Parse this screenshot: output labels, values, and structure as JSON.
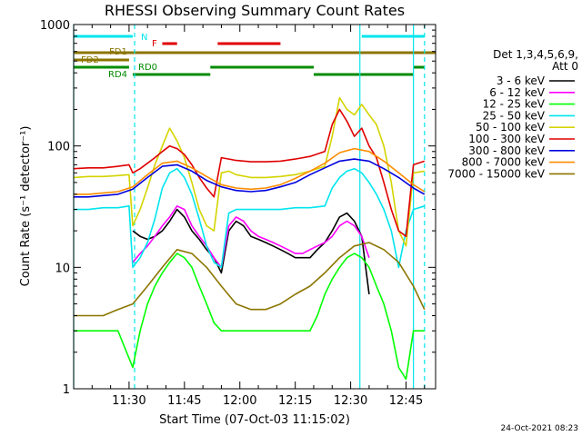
{
  "chart_data": {
    "type": "line",
    "title": "RHESSI Observing Summary Count Rates",
    "xlabel": "Start Time (07-Oct-03 11:15:02)",
    "ylabel": "Count Rate (s⁻¹ detector⁻¹)",
    "x_unit": "minutes after 11:15:02",
    "xlim": [
      0,
      98
    ],
    "ylim": [
      1,
      1000
    ],
    "yscale": "log",
    "x_ticks": [
      {
        "x": 15,
        "label": "11:30"
      },
      {
        "x": 30,
        "label": "11:45"
      },
      {
        "x": 45,
        "label": "12:00"
      },
      {
        "x": 60,
        "label": "12:15"
      },
      {
        "x": 75,
        "label": "12:30"
      },
      {
        "x": 90,
        "label": "12:45"
      }
    ],
    "y_ticks": [
      {
        "y": 1,
        "label": "1"
      },
      {
        "y": 10,
        "label": "10"
      },
      {
        "y": 100,
        "label": "100"
      },
      {
        "y": 1000,
        "label": "1000"
      }
    ],
    "legend_header": [
      "Det 1,3,4,5,6,9,",
      "Att 0"
    ],
    "legend_position": "right",
    "timestamp": "24-Oct-2021 08:23",
    "vlines": [
      {
        "x": 0,
        "style": "solid",
        "color": "#00e5ee"
      },
      {
        "x": 16.5,
        "style": "dashed",
        "color": "#00e5ee"
      },
      {
        "x": 77.5,
        "style": "solid",
        "color": "#00e5ee"
      },
      {
        "x": 92,
        "style": "solid",
        "color": "#00e5ee"
      },
      {
        "x": 95,
        "style": "dashed",
        "color": "#00e5ee"
      }
    ],
    "flags": [
      {
        "label": "N",
        "color": "#00e5ee",
        "level": 40,
        "segments": [
          [
            0,
            16
          ],
          [
            78,
            95
          ]
        ]
      },
      {
        "label": "F",
        "color": "#e00000",
        "level": 48,
        "segments": [
          [
            24,
            28
          ],
          [
            39,
            56
          ]
        ]
      },
      {
        "label": "FD1",
        "color": "#8b7500",
        "level": 58,
        "segments": [
          [
            0,
            98
          ]
        ]
      },
      {
        "label": "FD2",
        "color": "#8b7500",
        "level": 66,
        "segments": [
          [
            0,
            15
          ]
        ]
      },
      {
        "label": "RD0",
        "color": "#008b00",
        "level": 74,
        "segments": [
          [
            0,
            15
          ],
          [
            37,
            65
          ],
          [
            92,
            95
          ]
        ]
      },
      {
        "label": "RD4",
        "color": "#008b00",
        "level": 82,
        "segments": [
          [
            16,
            37
          ],
          [
            65,
            92
          ]
        ]
      }
    ],
    "series": [
      {
        "name": "3 - 6 keV",
        "color": "#000000",
        "x": [
          16,
          18,
          20,
          22,
          24,
          26,
          28,
          30,
          32,
          34,
          36,
          38,
          40,
          42,
          44,
          46,
          48,
          50,
          52,
          54,
          56,
          58,
          60,
          62,
          64,
          66,
          68,
          70,
          72,
          74,
          76,
          78,
          80
        ],
        "y": [
          20,
          18,
          17,
          18,
          20,
          24,
          30,
          26,
          20,
          17,
          14,
          12,
          9,
          20,
          24,
          22,
          18,
          17,
          16,
          15,
          14,
          13,
          12,
          12,
          12,
          14,
          16,
          20,
          26,
          28,
          24,
          18,
          6
        ]
      },
      {
        "name": "6 - 12 keV",
        "color": "#ff00ff",
        "x": [
          16,
          18,
          20,
          22,
          24,
          26,
          28,
          30,
          32,
          34,
          36,
          38,
          40,
          42,
          44,
          46,
          48,
          50,
          52,
          54,
          56,
          58,
          60,
          62,
          64,
          66,
          68,
          70,
          72,
          74,
          76,
          78,
          80
        ],
        "y": [
          11,
          13,
          15,
          18,
          22,
          26,
          32,
          30,
          22,
          18,
          15,
          12,
          10,
          22,
          26,
          24,
          20,
          18,
          17,
          16,
          15,
          14,
          13,
          13,
          14,
          15,
          16,
          18,
          22,
          24,
          22,
          18,
          12
        ]
      },
      {
        "name": "12 - 25 keV",
        "color": "#00ff00",
        "x": [
          0,
          4,
          8,
          12,
          16,
          18,
          20,
          22,
          24,
          26,
          28,
          30,
          32,
          34,
          36,
          38,
          40,
          42,
          44,
          48,
          52,
          56,
          60,
          64,
          66,
          68,
          70,
          72,
          74,
          76,
          78,
          80,
          82,
          84,
          86,
          88,
          90,
          92,
          95
        ],
        "y": [
          3,
          3,
          3,
          3,
          1.5,
          3,
          5,
          7,
          9,
          11,
          13,
          12,
          10,
          7,
          5,
          3.5,
          3,
          3,
          3,
          3,
          3,
          3,
          3,
          3,
          4,
          6,
          8,
          10,
          12,
          13,
          12,
          10,
          7,
          5,
          3,
          1.5,
          1.2,
          3,
          3
        ]
      },
      {
        "name": "25 - 50 keV",
        "color": "#00e5ee",
        "x": [
          0,
          4,
          8,
          12,
          15,
          16,
          18,
          20,
          22,
          24,
          26,
          28,
          30,
          32,
          34,
          36,
          38,
          40,
          42,
          44,
          48,
          52,
          56,
          60,
          64,
          68,
          70,
          72,
          74,
          76,
          78,
          80,
          82,
          84,
          86,
          88,
          90,
          92,
          95
        ],
        "y": [
          30,
          30,
          31,
          31,
          32,
          10,
          12,
          16,
          25,
          45,
          60,
          65,
          55,
          40,
          25,
          15,
          11,
          10,
          28,
          30,
          30,
          30,
          30,
          31,
          31,
          32,
          45,
          55,
          62,
          65,
          60,
          50,
          40,
          30,
          20,
          10,
          20,
          30,
          32
        ]
      },
      {
        "name": "50 - 100 keV",
        "color": "#d4d400",
        "x": [
          0,
          4,
          8,
          12,
          15,
          16,
          18,
          20,
          22,
          24,
          26,
          28,
          30,
          32,
          34,
          36,
          38,
          40,
          42,
          44,
          48,
          52,
          56,
          60,
          64,
          68,
          70,
          72,
          74,
          76,
          78,
          80,
          82,
          84,
          86,
          88,
          90,
          92,
          95
        ],
        "y": [
          55,
          56,
          56,
          57,
          58,
          22,
          30,
          45,
          70,
          100,
          140,
          110,
          80,
          50,
          30,
          22,
          20,
          60,
          62,
          58,
          55,
          55,
          56,
          58,
          62,
          68,
          120,
          250,
          200,
          180,
          220,
          180,
          150,
          100,
          50,
          20,
          15,
          60,
          62
        ]
      },
      {
        "name": "100 - 300 keV",
        "color": "#e00000",
        "x": [
          0,
          4,
          8,
          12,
          15,
          16,
          18,
          20,
          22,
          24,
          26,
          28,
          30,
          32,
          34,
          36,
          38,
          40,
          42,
          44,
          48,
          52,
          56,
          60,
          64,
          68,
          70,
          72,
          74,
          76,
          78,
          80,
          82,
          84,
          86,
          88,
          90,
          92,
          95
        ],
        "y": [
          65,
          66,
          66,
          68,
          70,
          60,
          65,
          72,
          80,
          90,
          100,
          95,
          85,
          70,
          55,
          45,
          38,
          80,
          78,
          76,
          74,
          74,
          75,
          78,
          82,
          90,
          150,
          200,
          160,
          120,
          140,
          100,
          80,
          50,
          30,
          20,
          18,
          70,
          75
        ]
      },
      {
        "name": "300 - 800 keV",
        "color": "#0000dd",
        "x": [
          0,
          4,
          8,
          12,
          16,
          20,
          24,
          28,
          32,
          36,
          40,
          44,
          48,
          52,
          56,
          60,
          64,
          68,
          72,
          76,
          80,
          84,
          88,
          92,
          95
        ],
        "y": [
          38,
          38,
          39,
          40,
          44,
          55,
          68,
          70,
          62,
          52,
          46,
          43,
          42,
          43,
          46,
          50,
          58,
          66,
          75,
          78,
          75,
          65,
          55,
          45,
          40
        ]
      },
      {
        "name": "800 - 7000 keV",
        "color": "#ff8c00",
        "x": [
          0,
          4,
          8,
          12,
          16,
          20,
          24,
          28,
          32,
          36,
          40,
          44,
          48,
          52,
          56,
          60,
          64,
          68,
          72,
          76,
          80,
          84,
          88,
          92,
          95
        ],
        "y": [
          40,
          40,
          41,
          42,
          46,
          58,
          72,
          75,
          66,
          56,
          48,
          45,
          44,
          45,
          48,
          54,
          62,
          72,
          88,
          95,
          90,
          75,
          60,
          48,
          42
        ]
      },
      {
        "name": "7000 - 15000 keV",
        "color": "#8b7500",
        "x": [
          0,
          4,
          8,
          12,
          16,
          20,
          24,
          28,
          32,
          36,
          40,
          44,
          48,
          52,
          56,
          60,
          64,
          68,
          72,
          76,
          80,
          84,
          88,
          92,
          95
        ],
        "y": [
          4,
          4,
          4,
          4.5,
          5,
          7,
          10,
          14,
          13,
          10,
          7,
          5,
          4.5,
          4.5,
          5,
          6,
          7,
          9,
          12,
          15,
          16,
          14,
          11,
          7,
          4.5
        ]
      }
    ]
  }
}
